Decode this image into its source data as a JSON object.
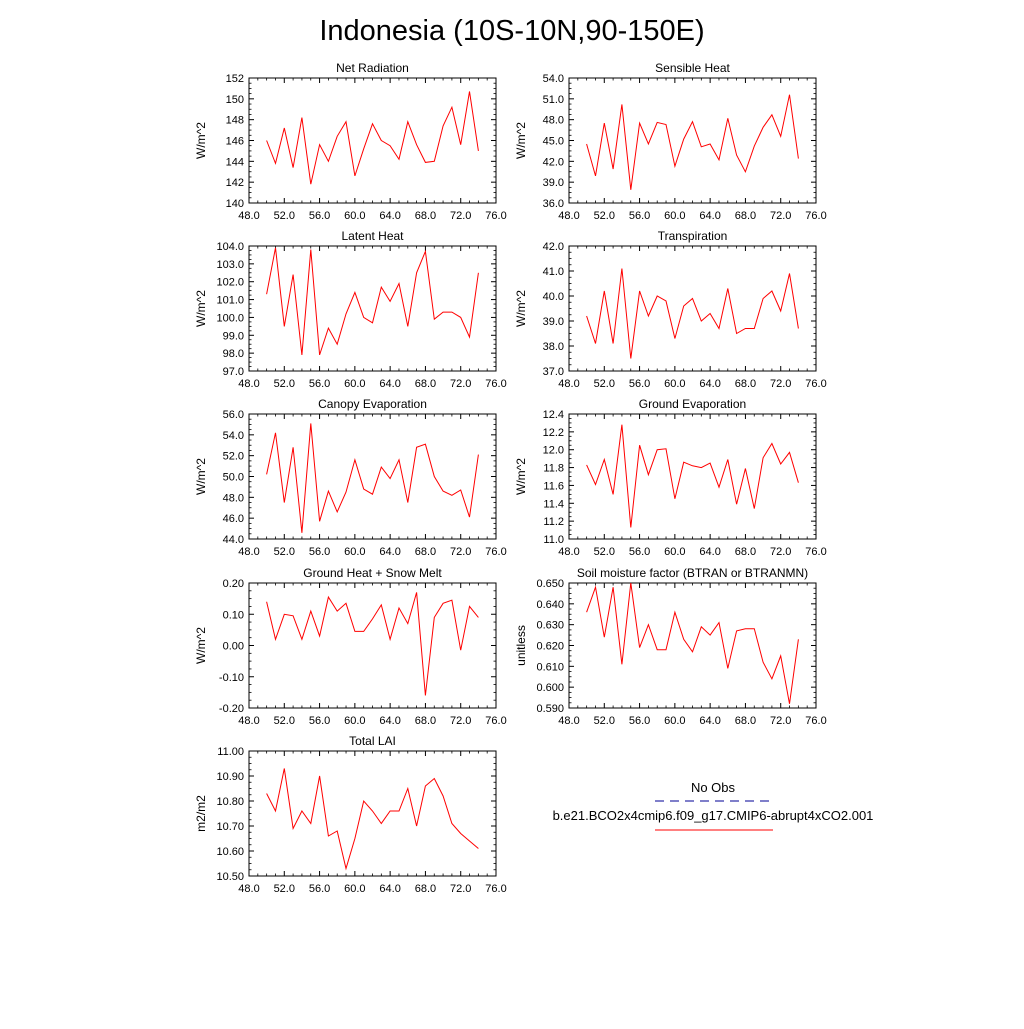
{
  "title": "Indonesia (10S-10N,90-150E)",
  "x_axis": {
    "range": [
      48,
      76
    ],
    "ticks": [
      "48.0",
      "52.0",
      "56.0",
      "60.0",
      "64.0",
      "68.0",
      "72.0",
      "76.0"
    ]
  },
  "x_years": [
    50,
    51,
    52,
    53,
    54,
    55,
    56,
    57,
    58,
    59,
    60,
    61,
    62,
    63,
    64,
    65,
    66,
    67,
    68,
    69,
    70,
    71,
    72,
    73,
    74
  ],
  "line_color": "#ff0000",
  "obs_color": "#3333aa",
  "legend": {
    "obs_label": "No Obs",
    "model_label": "b.e21.BCO2x4cmip6.f09_g17.CMIP6-abrupt4xCO2.001"
  },
  "chart_data": [
    {
      "type": "line",
      "title": "Net Radiation",
      "ylabel": "W/m^2",
      "ylim": [
        140,
        152
      ],
      "yticks": [
        "140",
        "142",
        "144",
        "146",
        "148",
        "150",
        "152"
      ],
      "values": [
        146,
        143.8,
        147.2,
        143.4,
        148.2,
        141.8,
        145.6,
        144,
        146.4,
        147.8,
        142.6,
        145.2,
        147.6,
        146,
        145.5,
        144.2,
        147.8,
        145.6,
        143.9,
        144,
        147.4,
        149.2,
        145.6,
        150.7,
        145
      ]
    },
    {
      "type": "line",
      "title": "Sensible Heat",
      "ylabel": "W/m^2",
      "ylim": [
        36,
        54
      ],
      "yticks": [
        "36.0",
        "39.0",
        "42.0",
        "45.0",
        "48.0",
        "51.0",
        "54.0"
      ],
      "values": [
        44.5,
        39.9,
        47.5,
        40.9,
        50.2,
        37.9,
        47.5,
        44.5,
        47.6,
        47.3,
        41.3,
        45.2,
        47.7,
        44.1,
        44.5,
        42.2,
        48.2,
        42.9,
        40.5,
        44.2,
        46.9,
        48.7,
        45.6,
        51.6,
        42.4
      ]
    },
    {
      "type": "line",
      "title": "Latent Heat",
      "ylabel": "W/m^2",
      "ylim": [
        97,
        104
      ],
      "yticks": [
        "97.0",
        "98.0",
        "99.0",
        "100.0",
        "101.0",
        "102.0",
        "103.0",
        "104.0"
      ],
      "values": [
        101.3,
        103.9,
        99.5,
        102.4,
        97.9,
        103.8,
        97.9,
        99.4,
        98.5,
        100.2,
        101.4,
        100,
        99.7,
        101.7,
        100.9,
        101.9,
        99.5,
        102.5,
        103.7,
        99.9,
        100.3,
        100.3,
        100,
        98.9,
        102.5
      ]
    },
    {
      "type": "line",
      "title": "Transpiration",
      "ylabel": "W/m^2",
      "ylim": [
        37,
        42
      ],
      "yticks": [
        "37.0",
        "38.0",
        "39.0",
        "40.0",
        "41.0",
        "42.0"
      ],
      "values": [
        39.2,
        38.1,
        40.2,
        38.1,
        41.1,
        37.5,
        40.2,
        39.2,
        40,
        39.8,
        38.3,
        39.6,
        39.9,
        39,
        39.3,
        38.7,
        40.3,
        38.5,
        38.7,
        38.7,
        39.9,
        40.2,
        39.4,
        40.9,
        38.7
      ]
    },
    {
      "type": "line",
      "title": "Canopy Evaporation",
      "ylabel": "W/m^2",
      "ylim": [
        44,
        56
      ],
      "yticks": [
        "44.0",
        "46.0",
        "48.0",
        "50.0",
        "52.0",
        "54.0",
        "56.0"
      ],
      "values": [
        50.2,
        54.2,
        47.5,
        52.8,
        44.6,
        55.1,
        45.7,
        48.6,
        46.6,
        48.5,
        51.6,
        48.8,
        48.3,
        50.9,
        49.8,
        51.6,
        47.5,
        52.8,
        53.1,
        50,
        48.6,
        48.2,
        48.7,
        46.1,
        52.1
      ]
    },
    {
      "type": "line",
      "title": "Ground Evaporation",
      "ylabel": "W/m^2",
      "ylim": [
        11,
        12.4
      ],
      "yticks": [
        "11.0",
        "11.2",
        "11.4",
        "11.6",
        "11.8",
        "12.0",
        "12.2",
        "12.4"
      ],
      "values": [
        11.83,
        11.61,
        11.89,
        11.5,
        12.28,
        11.13,
        12.05,
        11.72,
        12,
        12.01,
        11.45,
        11.86,
        11.82,
        11.8,
        11.85,
        11.58,
        11.89,
        11.39,
        11.79,
        11.34,
        11.91,
        12.07,
        11.84,
        11.97,
        11.63
      ]
    },
    {
      "type": "line",
      "title": "Ground Heat + Snow Melt",
      "ylabel": "W/m^2",
      "ylim": [
        -0.2,
        0.2
      ],
      "yticks": [
        "-0.20",
        "-0.10",
        "0.00",
        "0.10",
        "0.20"
      ],
      "values": [
        0.14,
        0.02,
        0.1,
        0.095,
        0.02,
        0.11,
        0.03,
        0.155,
        0.11,
        0.135,
        0.045,
        0.045,
        0.085,
        0.13,
        0.02,
        0.12,
        0.07,
        0.17,
        -0.16,
        0.09,
        0.135,
        0.145,
        -0.015,
        0.125,
        0.09
      ]
    },
    {
      "type": "line",
      "title": "Soil moisture factor (BTRAN or BTRANMN)",
      "ylabel": "unitless",
      "ylim": [
        0.59,
        0.65
      ],
      "yticks": [
        "0.590",
        "0.600",
        "0.610",
        "0.620",
        "0.630",
        "0.640",
        "0.650"
      ],
      "values": [
        0.636,
        0.648,
        0.624,
        0.648,
        0.611,
        0.65,
        0.619,
        0.63,
        0.618,
        0.618,
        0.636,
        0.623,
        0.617,
        0.629,
        0.625,
        0.631,
        0.609,
        0.627,
        0.628,
        0.628,
        0.612,
        0.604,
        0.615,
        0.592,
        0.623
      ]
    },
    {
      "type": "line",
      "title": "Total LAI",
      "ylabel": "m2/m2",
      "ylim": [
        10.5,
        11
      ],
      "yticks": [
        "10.50",
        "10.60",
        "10.70",
        "10.80",
        "10.90",
        "11.00"
      ],
      "values": [
        10.83,
        10.76,
        10.93,
        10.69,
        10.76,
        10.71,
        10.9,
        10.66,
        10.68,
        10.53,
        10.65,
        10.8,
        10.76,
        10.71,
        10.76,
        10.76,
        10.85,
        10.7,
        10.86,
        10.89,
        10.82,
        10.71,
        10.67,
        10.64,
        10.61
      ]
    }
  ]
}
